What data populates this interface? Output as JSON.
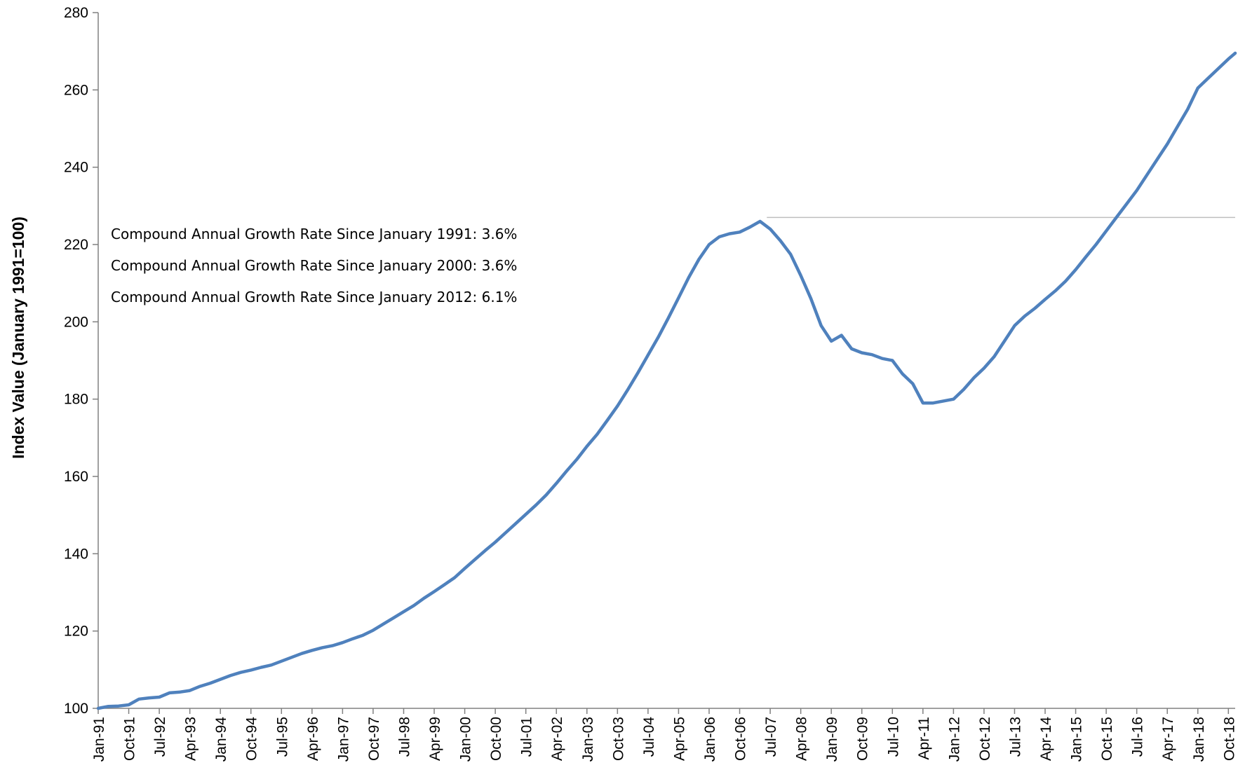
{
  "chart_data": {
    "type": "line",
    "title": "",
    "xlabel": "",
    "ylabel": "Index Value (January 1991=100)",
    "ylim": [
      100,
      280
    ],
    "yticks": [
      100,
      120,
      140,
      160,
      180,
      200,
      220,
      240,
      260,
      280
    ],
    "x_tick_labels": [
      "Jan-91",
      "Oct-91",
      "Jul-92",
      "Apr-93",
      "Jan-94",
      "Oct-94",
      "Jul-95",
      "Apr-96",
      "Jan-97",
      "Oct-97",
      "Jul-98",
      "Apr-99",
      "Jan-00",
      "Oct-00",
      "Jul-01",
      "Apr-02",
      "Jan-03",
      "Oct-03",
      "Jul-04",
      "Apr-05",
      "Jan-06",
      "Oct-06",
      "Jul-07",
      "Apr-08",
      "Jan-09",
      "Oct-09",
      "Jul-10",
      "Apr-11",
      "Jan-12",
      "Oct-12",
      "Jul-13",
      "Apr-14",
      "Jan-15",
      "Oct-15",
      "Jul-16",
      "Apr-17",
      "Jan-18",
      "Oct-18"
    ],
    "grid": false,
    "legend": "none",
    "reference_line": {
      "value": 227,
      "from": "Jun-07",
      "to": "Dec-18",
      "color": "#bfbfbf"
    },
    "series": [
      {
        "color": "#4f81bd",
        "points": [
          [
            "Jan-91",
            100
          ],
          [
            "Apr-91",
            100.5
          ],
          [
            "Jul-91",
            100.6
          ],
          [
            "Oct-91",
            100.9
          ],
          [
            "Jan-92",
            102.4
          ],
          [
            "Apr-92",
            102.7
          ],
          [
            "Jul-92",
            102.9
          ],
          [
            "Oct-92",
            104
          ],
          [
            "Jan-93",
            104.2
          ],
          [
            "Apr-93",
            104.6
          ],
          [
            "Jul-93",
            105.7
          ],
          [
            "Oct-93",
            106.5
          ],
          [
            "Jan-94",
            107.5
          ],
          [
            "Apr-94",
            108.5
          ],
          [
            "Jul-94",
            109.3
          ],
          [
            "Oct-94",
            109.9
          ],
          [
            "Jan-95",
            110.6
          ],
          [
            "Apr-95",
            111.2
          ],
          [
            "Jul-95",
            112.2
          ],
          [
            "Oct-95",
            113.2
          ],
          [
            "Jan-96",
            114.2
          ],
          [
            "Apr-96",
            115
          ],
          [
            "Jul-96",
            115.7
          ],
          [
            "Oct-96",
            116.2
          ],
          [
            "Jan-97",
            117
          ],
          [
            "Apr-97",
            118
          ],
          [
            "Jul-97",
            118.9
          ],
          [
            "Oct-97",
            120.2
          ],
          [
            "Jan-98",
            121.8
          ],
          [
            "Apr-98",
            123.4
          ],
          [
            "Jul-98",
            125
          ],
          [
            "Oct-98",
            126.6
          ],
          [
            "Jan-99",
            128.5
          ],
          [
            "Apr-99",
            130.2
          ],
          [
            "Jul-99",
            132
          ],
          [
            "Oct-99",
            133.8
          ],
          [
            "Jan-00",
            136.2
          ],
          [
            "Apr-00",
            138.5
          ],
          [
            "Jul-00",
            140.8
          ],
          [
            "Oct-00",
            143
          ],
          [
            "Jan-01",
            145.4
          ],
          [
            "Apr-01",
            147.8
          ],
          [
            "Jul-01",
            150.2
          ],
          [
            "Oct-01",
            152.6
          ],
          [
            "Jan-02",
            155.2
          ],
          [
            "Apr-02",
            158.2
          ],
          [
            "Jul-02",
            161.4
          ],
          [
            "Oct-02",
            164.4
          ],
          [
            "Jan-03",
            167.8
          ],
          [
            "Apr-03",
            170.9
          ],
          [
            "Jul-03",
            174.5
          ],
          [
            "Oct-03",
            178.2
          ],
          [
            "Jan-04",
            182.4
          ],
          [
            "Apr-04",
            186.8
          ],
          [
            "Jul-04",
            191.4
          ],
          [
            "Oct-04",
            196
          ],
          [
            "Jan-05",
            201
          ],
          [
            "Apr-05",
            206.2
          ],
          [
            "Jul-05",
            211.5
          ],
          [
            "Oct-05",
            216.2
          ],
          [
            "Jan-06",
            220
          ],
          [
            "Apr-06",
            222
          ],
          [
            "Jul-06",
            222.8
          ],
          [
            "Oct-06",
            223.2
          ],
          [
            "Jan-07",
            224.5
          ],
          [
            "Apr-07",
            226
          ],
          [
            "Jul-07",
            224
          ],
          [
            "Oct-07",
            221
          ],
          [
            "Jan-08",
            217.5
          ],
          [
            "Apr-08",
            212
          ],
          [
            "Jul-08",
            206
          ],
          [
            "Oct-08",
            199
          ],
          [
            "Jan-09",
            195
          ],
          [
            "Apr-09",
            196.5
          ],
          [
            "Jul-09",
            193
          ],
          [
            "Oct-09",
            192
          ],
          [
            "Jan-10",
            191.5
          ],
          [
            "Apr-10",
            190.5
          ],
          [
            "Jul-10",
            190
          ],
          [
            "Oct-10",
            186.5
          ],
          [
            "Jan-11",
            184
          ],
          [
            "Apr-11",
            179
          ],
          [
            "Jul-11",
            179
          ],
          [
            "Oct-11",
            179.5
          ],
          [
            "Jan-12",
            180
          ],
          [
            "Apr-12",
            182.5
          ],
          [
            "Jul-12",
            185.5
          ],
          [
            "Oct-12",
            188
          ],
          [
            "Jan-13",
            191
          ],
          [
            "Apr-13",
            195
          ],
          [
            "Jul-13",
            199
          ],
          [
            "Oct-13",
            201.5
          ],
          [
            "Jan-14",
            203.5
          ],
          [
            "Apr-14",
            205.8
          ],
          [
            "Jul-14",
            208
          ],
          [
            "Oct-14",
            210.5
          ],
          [
            "Jan-15",
            213.5
          ],
          [
            "Apr-15",
            216.8
          ],
          [
            "Jul-15",
            220
          ],
          [
            "Oct-15",
            223.5
          ],
          [
            "Jan-16",
            227
          ],
          [
            "Apr-16",
            230.5
          ],
          [
            "Jul-16",
            234
          ],
          [
            "Oct-16",
            238
          ],
          [
            "Jan-17",
            242
          ],
          [
            "Apr-17",
            246
          ],
          [
            "Jul-17",
            250.5
          ],
          [
            "Oct-17",
            255
          ],
          [
            "Jan-18",
            260.5
          ],
          [
            "Apr-18",
            263
          ],
          [
            "Jul-18",
            265.5
          ],
          [
            "Oct-18",
            268
          ],
          [
            "Dec-18",
            269.5
          ]
        ]
      }
    ],
    "annotations": [
      {
        "label": "Compound Annual Growth Rate Since January 1991:",
        "value": "3.6%"
      },
      {
        "label": "Compound Annual Growth Rate Since January 2000:",
        "value": "3.6%"
      },
      {
        "label": "Compound Annual Growth Rate Since January 2012:",
        "value": "6.1%"
      }
    ]
  }
}
